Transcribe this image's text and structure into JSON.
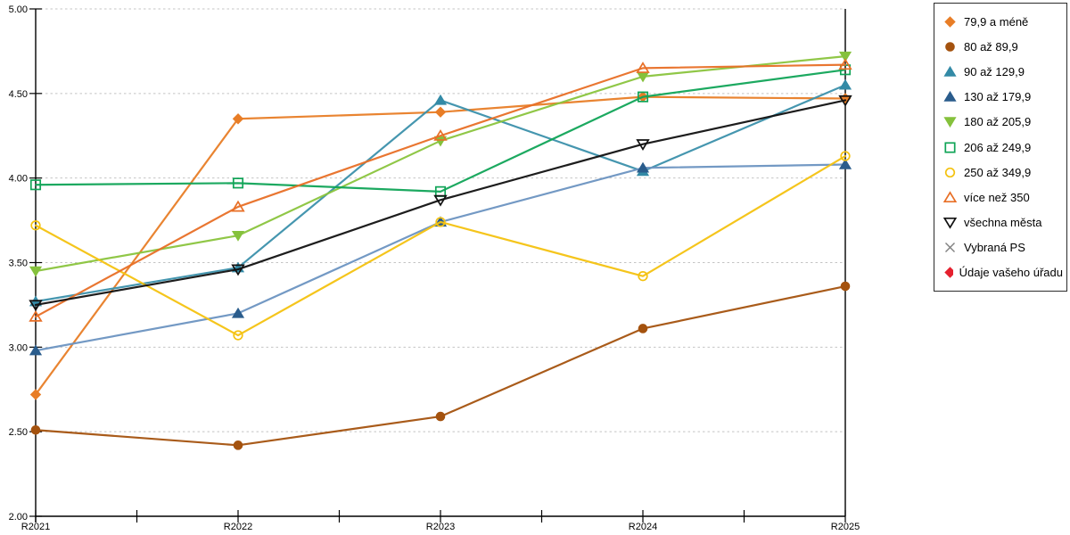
{
  "chart_data": {
    "type": "line",
    "title": "",
    "xlabel": "",
    "ylabel": "",
    "categories": [
      "R2021",
      "R2022",
      "R2023",
      "R2024",
      "R2025"
    ],
    "ylim": [
      2.0,
      5.0
    ],
    "y_tick_labels": [
      "2.00",
      "2.50",
      "3.00",
      "3.50",
      "4.00",
      "4.50",
      "5.00"
    ],
    "grid": "horizontal-dashed",
    "legend_position": "right",
    "colors": {
      "gridline": "#c4c4c4",
      "axis": "#000000",
      "background": "#ffffff"
    },
    "series": [
      {
        "name": "79,9 a méně",
        "marker": "diamond",
        "fill": "filled",
        "color": "#E87D26",
        "marker_color": "#E87D26",
        "values": [
          2.72,
          4.35,
          4.39,
          4.48,
          4.47
        ]
      },
      {
        "name": "80 až 89,9",
        "marker": "circle",
        "fill": "filled",
        "color": "#A4520E",
        "marker_color": "#A4520E",
        "values": [
          2.51,
          2.42,
          2.59,
          3.11,
          3.36
        ]
      },
      {
        "name": "90 až 129,9",
        "marker": "triangle-up",
        "fill": "filled",
        "color": "#3B90AB",
        "marker_color": "#338AA6",
        "values": [
          3.27,
          3.47,
          4.46,
          4.04,
          4.55
        ]
      },
      {
        "name": "130 až 179,9",
        "marker": "triangle-up",
        "fill": "filled",
        "color": "#6B93C1",
        "marker_color": "#2A5C8C",
        "values": [
          2.98,
          3.2,
          3.74,
          4.06,
          4.08
        ]
      },
      {
        "name": "180 až 205,9",
        "marker": "triangle-down",
        "fill": "filled",
        "color": "#8AC43D",
        "marker_color": "#85C13C",
        "values": [
          3.45,
          3.66,
          4.22,
          4.6,
          4.72
        ]
      },
      {
        "name": "206 až 249,9",
        "marker": "square",
        "fill": "hollow",
        "color": "#10A457",
        "marker_color": "#10A457",
        "values": [
          3.96,
          3.97,
          3.92,
          4.48,
          4.64
        ]
      },
      {
        "name": "250 až 349,9",
        "marker": "circle",
        "fill": "hollow",
        "color": "#F4C210",
        "marker_color": "#F4C210",
        "values": [
          3.72,
          3.07,
          3.74,
          3.42,
          4.13
        ]
      },
      {
        "name": "více než 350",
        "marker": "triangle-up",
        "fill": "hollow",
        "color": "#E86F26",
        "marker_color": "#E86F26",
        "values": [
          3.18,
          3.83,
          4.25,
          4.65,
          4.67
        ]
      },
      {
        "name": "všechna města",
        "marker": "triangle-down",
        "fill": "hollow",
        "color": "#111111",
        "marker_color": "#111111",
        "values": [
          3.25,
          3.46,
          3.87,
          4.2,
          4.46
        ]
      },
      {
        "name": "Vybraná PS",
        "marker": "x",
        "fill": "hollow",
        "color": "#7F7F7F",
        "marker_color": "#7F7F7F",
        "values": null
      },
      {
        "name": "Údaje vašeho úřadu",
        "marker": "diamond",
        "fill": "filled",
        "color": "#E5202E",
        "marker_color": "#E5202E",
        "values": null
      }
    ]
  }
}
